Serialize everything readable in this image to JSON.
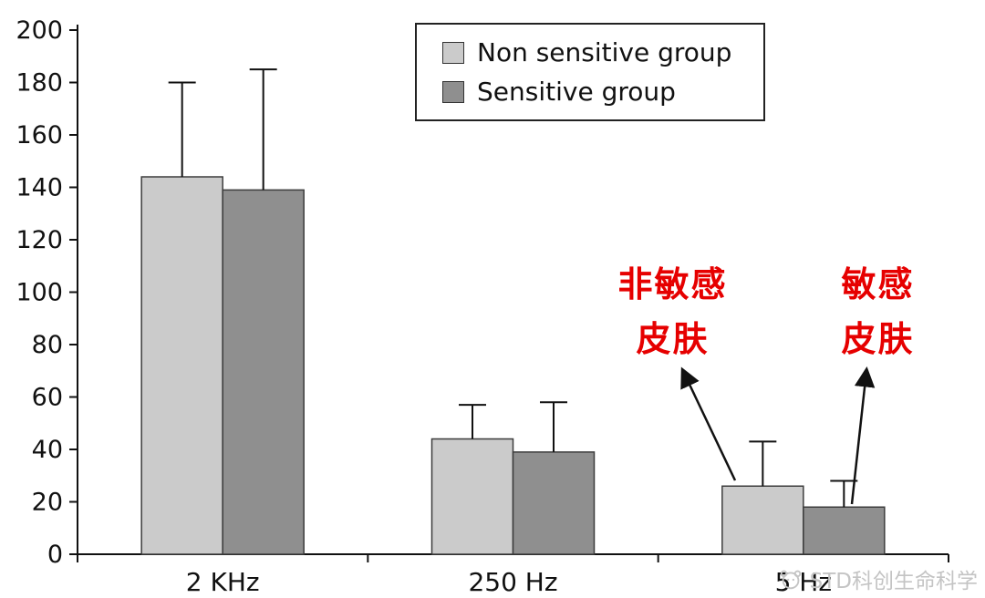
{
  "chart_data": {
    "type": "bar",
    "title": "",
    "xlabel": "",
    "ylabel": "",
    "categories": [
      "2 KHz",
      "250 Hz",
      "5 Hz"
    ],
    "series": [
      {
        "name": "Non sensitive group",
        "color": "#cbcbcb",
        "values": [
          144,
          44,
          26
        ],
        "errors_up": [
          36,
          13,
          17
        ]
      },
      {
        "name": "Sensitive group",
        "color": "#8f8f8f",
        "values": [
          139,
          39,
          18
        ],
        "errors_up": [
          46,
          19,
          10
        ]
      }
    ],
    "ylim": [
      0,
      200
    ],
    "ytick_step": 20,
    "yticks": [
      0,
      20,
      40,
      60,
      80,
      100,
      120,
      140,
      160,
      180,
      200
    ],
    "grid": false,
    "legend_position": "top-center"
  },
  "legend": {
    "items": [
      {
        "label": "Non sensitive group",
        "color": "#cbcbcb"
      },
      {
        "label": "Sensitive group",
        "color": "#8f8f8f"
      }
    ]
  },
  "annotations": {
    "non_sensitive": {
      "line1": "非敏感",
      "line2": "皮肤",
      "color": "#e60000"
    },
    "sensitive": {
      "line1": "敏感",
      "line2": "皮肤",
      "color": "#e60000"
    }
  },
  "watermark": {
    "text": "STD科创生命科学"
  }
}
